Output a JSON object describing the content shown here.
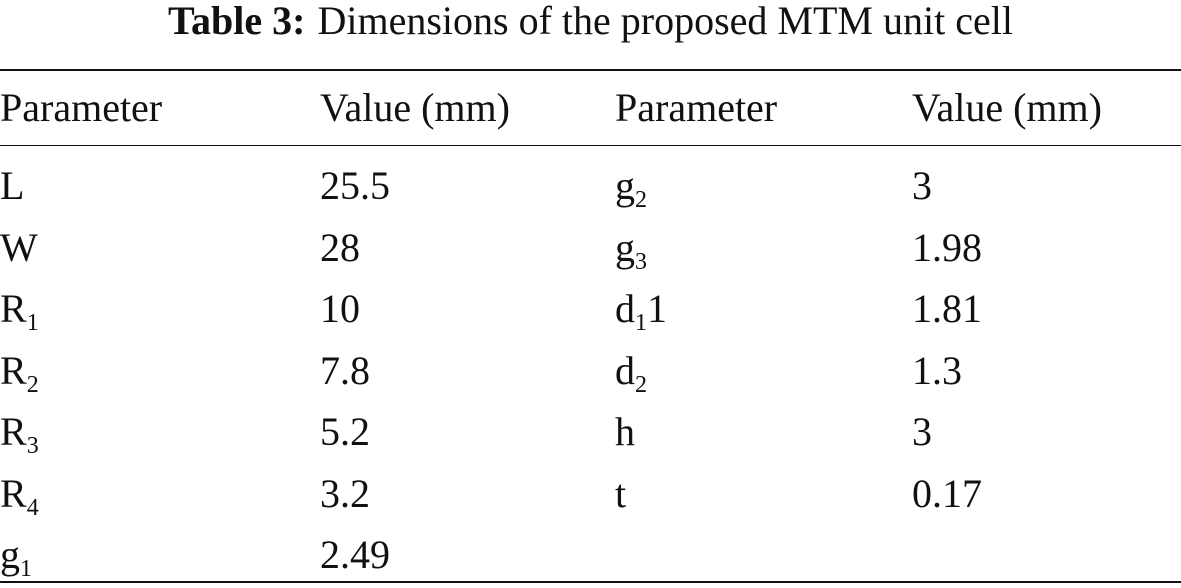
{
  "caption": {
    "label": "Table 3:",
    "text": "Dimensions of the proposed MTM unit cell"
  },
  "table": {
    "header": [
      "Parameter",
      "Value (mm)",
      "Parameter",
      "Value (mm)"
    ],
    "rows": [
      [
        "L",
        "25.5",
        {
          "base": "g",
          "sub": "2"
        },
        "3"
      ],
      [
        "W",
        "28",
        {
          "base": "g",
          "sub": "3"
        },
        "1.98"
      ],
      [
        {
          "base": "R",
          "sub": "1"
        },
        "10",
        {
          "base": "d",
          "sub": "1",
          "after": "1"
        },
        "1.81"
      ],
      [
        {
          "base": "R",
          "sub": "2"
        },
        "7.8",
        {
          "base": "d",
          "sub": "2"
        },
        "1.3"
      ],
      [
        {
          "base": "R",
          "sub": "3"
        },
        "5.2",
        "h",
        "3"
      ],
      [
        {
          "base": "R",
          "sub": "4"
        },
        "3.2",
        "t",
        "0.17"
      ],
      [
        {
          "base": "g",
          "sub": "1"
        },
        "2.49"
      ]
    ]
  }
}
